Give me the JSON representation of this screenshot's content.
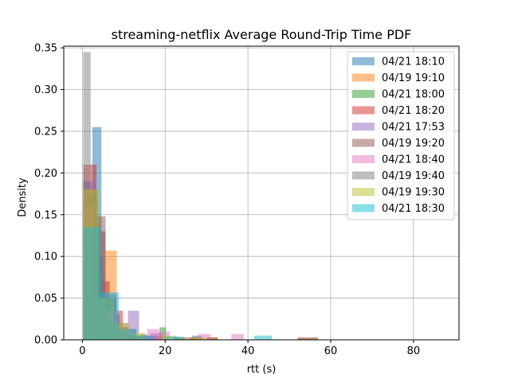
{
  "chart_data": {
    "type": "bar",
    "title": "streaming-netflix Average Round-Trip Time PDF",
    "xlabel": "rtt (s)",
    "ylabel": "Density",
    "xlim": [
      -4.5,
      91
    ],
    "ylim": [
      0,
      0.352
    ],
    "xticks": [
      0,
      20,
      40,
      60,
      80
    ],
    "yticks": [
      0.0,
      0.05,
      0.1,
      0.15,
      0.2,
      0.25,
      0.3,
      0.35
    ],
    "grid": true,
    "legend_position": "top-right",
    "bar_opacity": 0.5,
    "series": [
      {
        "name": "04/21 18:10",
        "color": "#1f77b4",
        "bins": [
          [
            0.2,
            2.4,
            0.17
          ],
          [
            2.4,
            4.6,
            0.255
          ],
          [
            4.6,
            6.8,
            0.05
          ],
          [
            6.8,
            9.0,
            0.03
          ],
          [
            9.0,
            11.2,
            0.015
          ],
          [
            11.2,
            13.4,
            0.005
          ],
          [
            15.6,
            17.8,
            0.005
          ],
          [
            26.5,
            28.7,
            0.005
          ]
        ]
      },
      {
        "name": "04/19 19:10",
        "color": "#ff7f0e",
        "bins": [
          [
            0.2,
            2.9,
            0.16
          ],
          [
            2.9,
            5.6,
            0.13
          ],
          [
            5.6,
            8.3,
            0.107
          ],
          [
            8.3,
            11.0,
            0.012
          ],
          [
            11.0,
            13.7,
            0.005
          ],
          [
            22.0,
            24.7,
            0.003
          ],
          [
            30.0,
            32.7,
            0.003
          ],
          [
            52.0,
            56.9,
            0.002
          ]
        ]
      },
      {
        "name": "04/21 18:00",
        "color": "#2ca02c",
        "bins": [
          [
            0.2,
            1.8,
            0.19
          ],
          [
            1.8,
            3.4,
            0.175
          ],
          [
            3.4,
            5.0,
            0.1
          ],
          [
            5.0,
            6.6,
            0.04
          ],
          [
            6.6,
            8.2,
            0.01
          ],
          [
            8.2,
            9.8,
            0.008
          ],
          [
            14.0,
            15.6,
            0.007
          ],
          [
            18.6,
            20.2,
            0.015
          ],
          [
            22.0,
            23.6,
            0.003
          ]
        ]
      },
      {
        "name": "04/21 18:20",
        "color": "#d62728",
        "bins": [
          [
            0.2,
            3.4,
            0.21
          ],
          [
            3.4,
            6.6,
            0.07
          ],
          [
            6.6,
            9.8,
            0.035
          ],
          [
            9.8,
            13.0,
            0.013
          ],
          [
            13.0,
            16.2,
            0.005
          ],
          [
            16.2,
            19.4,
            0.005
          ],
          [
            26.0,
            29.2,
            0.003
          ]
        ]
      },
      {
        "name": "04/21 17:53",
        "color": "#9467bd",
        "bins": [
          [
            0.2,
            2.9,
            0.19
          ],
          [
            2.9,
            5.6,
            0.13
          ],
          [
            5.6,
            8.3,
            0.055
          ],
          [
            8.3,
            11.0,
            0.02
          ],
          [
            11.0,
            13.7,
            0.035
          ],
          [
            13.7,
            16.4,
            0.005
          ],
          [
            16.4,
            19.1,
            0.008
          ]
        ]
      },
      {
        "name": "04/19 19:20",
        "color": "#8c564b",
        "bins": [
          [
            0.2,
            2.9,
            0.14
          ],
          [
            2.9,
            5.6,
            0.148
          ],
          [
            5.6,
            8.3,
            0.05
          ],
          [
            8.3,
            11.0,
            0.015
          ],
          [
            11.0,
            13.7,
            0.005
          ],
          [
            24.0,
            26.7,
            0.003
          ],
          [
            30.0,
            32.7,
            0.003
          ],
          [
            52.0,
            56.9,
            0.003
          ]
        ]
      },
      {
        "name": "04/21 18:40",
        "color": "#e377c2",
        "bins": [
          [
            0.2,
            2.9,
            0.16
          ],
          [
            2.9,
            5.6,
            0.05
          ],
          [
            5.6,
            8.3,
            0.035
          ],
          [
            8.3,
            11.0,
            0.015
          ],
          [
            13.0,
            15.7,
            0.005
          ],
          [
            15.7,
            18.4,
            0.013
          ],
          [
            18.4,
            21.1,
            0.01
          ],
          [
            28.0,
            31.0,
            0.007
          ],
          [
            36.0,
            39.0,
            0.007
          ]
        ]
      },
      {
        "name": "04/19 19:40",
        "color": "#7f7f7f",
        "bins": [
          [
            0.2,
            2.0,
            0.345
          ],
          [
            2.0,
            3.8,
            0.18
          ],
          [
            3.8,
            5.6,
            0.08
          ],
          [
            5.6,
            7.4,
            0.02
          ],
          [
            7.4,
            9.2,
            0.01
          ],
          [
            12.0,
            13.8,
            0.003
          ]
        ]
      },
      {
        "name": "04/19 19:30",
        "color": "#bcbd22",
        "bins": [
          [
            0.2,
            3.9,
            0.18
          ],
          [
            3.9,
            7.6,
            0.05
          ],
          [
            7.6,
            11.3,
            0.02
          ],
          [
            11.3,
            15.0,
            0.008
          ],
          [
            19.0,
            22.7,
            0.005
          ],
          [
            26.0,
            29.7,
            0.003
          ]
        ]
      },
      {
        "name": "04/21 18:30",
        "color": "#17becf",
        "bins": [
          [
            0.2,
            4.5,
            0.135
          ],
          [
            4.5,
            8.8,
            0.057
          ],
          [
            8.8,
            13.1,
            0.013
          ],
          [
            13.1,
            17.4,
            0.005
          ],
          [
            20.0,
            24.3,
            0.004
          ],
          [
            41.5,
            45.8,
            0.005
          ]
        ]
      }
    ]
  }
}
